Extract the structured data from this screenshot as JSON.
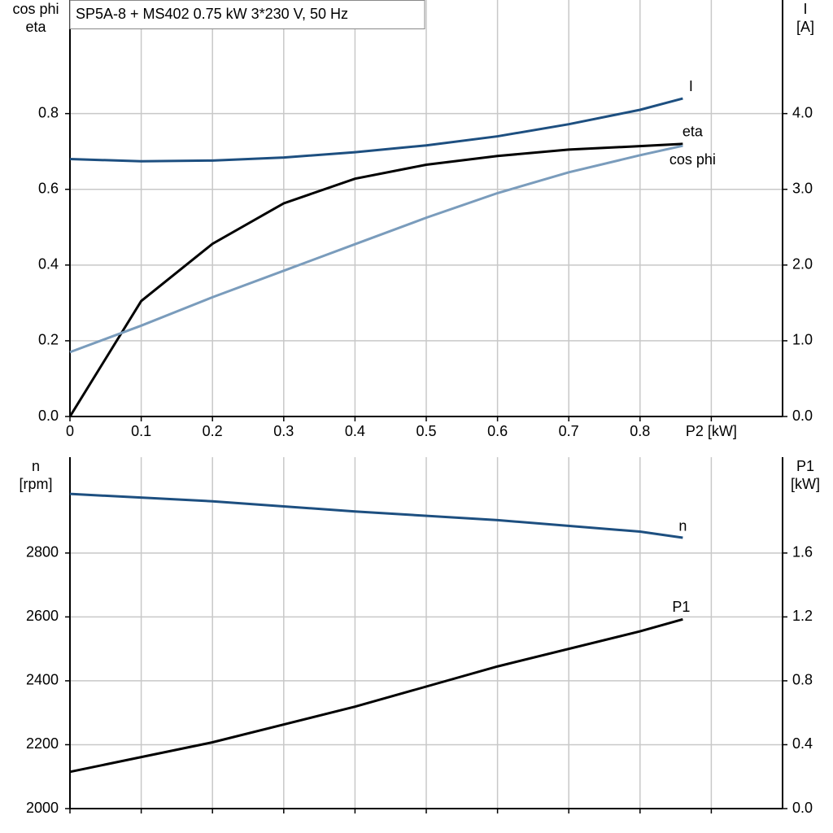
{
  "chart_data": [
    {
      "type": "line",
      "title": "SP5A-8 + MS402   0.75 kW   3*230 V, 50 Hz",
      "y_label": [
        "cos phi",
        "eta"
      ],
      "y2_label": [
        "I",
        "[A]"
      ],
      "x": [
        0,
        0.1,
        0.2,
        0.3,
        0.4,
        0.5,
        0.6,
        0.7,
        0.8,
        0.86
      ],
      "xlim": [
        0,
        1.0
      ],
      "xticks": [
        {
          "value": 0,
          "label": "0"
        },
        0.1,
        0.2,
        0.3,
        0.4,
        0.5,
        0.6,
        0.7,
        0.8,
        {
          "value": 0.9,
          "label": "P2 [kW]"
        }
      ],
      "ylim": [
        0,
        1.1
      ],
      "yticks": [
        {
          "value": 0,
          "label": "0.0"
        },
        0.2,
        0.4,
        0.6,
        0.8
      ],
      "y2lim": [
        0,
        5.5
      ],
      "y2ticks": [
        {
          "value": 0,
          "label": "0.0"
        },
        {
          "value": 1,
          "label": "1.0"
        },
        {
          "value": 2,
          "label": "2.0"
        },
        {
          "value": 3,
          "label": "3.0"
        },
        {
          "value": 4,
          "label": "4.0"
        }
      ],
      "grid": true,
      "series": [
        {
          "name": "I",
          "color": "#1d4f80",
          "axis": "y2",
          "values": [
            3.4,
            3.37,
            3.38,
            3.42,
            3.49,
            3.58,
            3.7,
            3.86,
            4.05,
            4.2
          ]
        },
        {
          "name": "eta",
          "color": "#000000",
          "values": [
            0,
            0.305,
            0.456,
            0.563,
            0.628,
            0.665,
            0.688,
            0.705,
            0.714,
            0.72
          ]
        },
        {
          "name": "cos phi",
          "color": "#7a9cbc",
          "values": [
            0.17,
            0.24,
            0.315,
            0.385,
            0.455,
            0.525,
            0.59,
            0.645,
            0.69,
            0.715
          ]
        }
      ]
    },
    {
      "type": "line",
      "y_label": [
        "n",
        "[rpm]"
      ],
      "y2_label": [
        "P1",
        "[kW]"
      ],
      "x": [
        0,
        0.2,
        0.4,
        0.6,
        0.8,
        0.86
      ],
      "xlim": [
        0,
        1.0
      ],
      "ylim": [
        2000,
        3100
      ],
      "yticks": [
        2000,
        2200,
        2400,
        2600,
        2800
      ],
      "y2lim": [
        0,
        2.2
      ],
      "y2ticks": [
        {
          "value": 0,
          "label": "0.0"
        },
        0.4,
        0.8,
        1.2,
        1.6
      ],
      "grid": true,
      "series": [
        {
          "name": "n",
          "color": "#1d4f80",
          "values": [
            2985,
            2962,
            2930,
            2903,
            2867,
            2848
          ]
        },
        {
          "name": "P1",
          "color": "#000000",
          "axis": "y2",
          "values": [
            0.23,
            0.415,
            0.638,
            0.89,
            1.11,
            1.185
          ]
        }
      ]
    }
  ]
}
